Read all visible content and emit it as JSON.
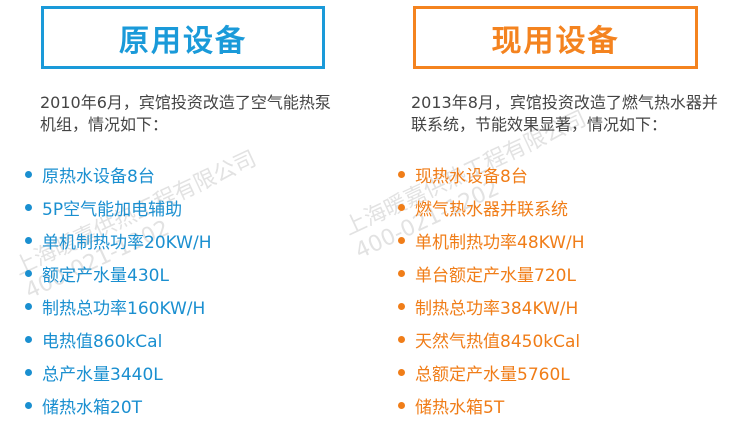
{
  "left": {
    "title": "原用设备",
    "intro": "2010年6月，宾馆投资改造了空气能热泵机组，情况如下：",
    "items": [
      "原热水设备8台",
      "5P空气能加电辅助",
      "单机制热功率20KW/H",
      "额定产水量430L",
      "制热总功率160KW/H",
      "电热值860kCal",
      "总产水量3440L",
      "储热水箱20T"
    ]
  },
  "right": {
    "title": "现用设备",
    "intro": "2013年8月，宾馆投资改造了燃气热水器并联系统，节能效果显著，情况如下：",
    "items": [
      "现热水设备8台",
      "燃气热水器并联系统",
      "单机制热功率48KW/H",
      "单台额定产水量720L",
      "制热总功率384KW/H",
      "天然气热值8450kCal",
      "总额定产水量5760L",
      "储热水箱5T"
    ]
  },
  "watermark": {
    "company": "上海暖嘉供热工程有限公司",
    "phone": "400-021-1202"
  },
  "colors": {
    "blue": "#1a9ad9",
    "orange": "#f4831f"
  }
}
